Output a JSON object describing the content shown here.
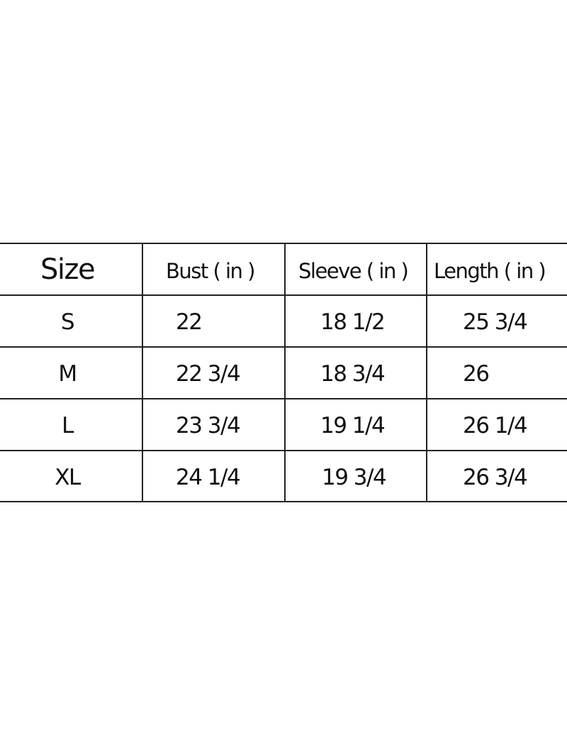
{
  "table": {
    "headers": [
      "Size",
      "Bust ( in )",
      "Sleeve ( in )",
      "Length ( in )"
    ],
    "rows": [
      [
        "S",
        "22",
        "18 1/2",
        "25 3/4"
      ],
      [
        "M",
        "22 3/4",
        "18 3/4",
        "26"
      ],
      [
        "L",
        "23 3/4",
        "19 1/4",
        "26 1/4"
      ],
      [
        "XL",
        "24 1/4",
        "19 3/4",
        "26 3/4"
      ]
    ]
  }
}
